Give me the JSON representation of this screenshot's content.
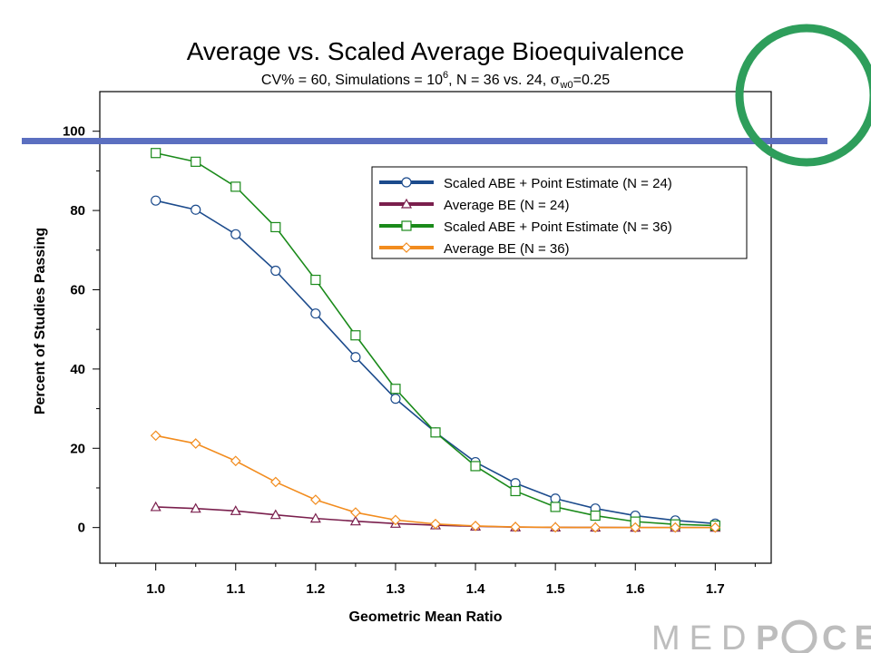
{
  "slide": {
    "title": "Average vs. Scaled Average Bioequivalence",
    "subtitle_parts": {
      "prefix": "CV% = 60, Simulations = 10",
      "sup": "6",
      "middle": ", N = 36 vs. 24, ",
      "sigma": "σ",
      "sub": "w0",
      "suffix": "=0.25"
    },
    "logo_text": "MEDPACE",
    "colors": {
      "header_bar": "#5b6fc0",
      "ring": "#2e9e5b",
      "logo": "#bdbdbd"
    }
  },
  "chart_data": {
    "type": "line",
    "xlabel": "Geometric Mean Ratio",
    "ylabel": "Percent of Studies Passing",
    "xlim": [
      0.93,
      1.77
    ],
    "ylim": [
      -9,
      110
    ],
    "x_ticks": [
      1.0,
      1.1,
      1.2,
      1.3,
      1.4,
      1.5,
      1.6,
      1.7
    ],
    "x_tick_labels": [
      "1.0",
      "1.1",
      "1.2",
      "1.3",
      "1.4",
      "1.5",
      "1.6",
      "1.7"
    ],
    "y_ticks": [
      0,
      20,
      40,
      60,
      80,
      100
    ],
    "y_tick_labels": [
      "0",
      "20",
      "40",
      "60",
      "80",
      "100"
    ],
    "grid": false,
    "legend_position": "top-right",
    "x": [
      1.0,
      1.05,
      1.1,
      1.15,
      1.2,
      1.25,
      1.3,
      1.35,
      1.4,
      1.45,
      1.5,
      1.55,
      1.6,
      1.65,
      1.7
    ],
    "series": [
      {
        "name": "Scaled ABE + Point Estimate (N = 24)",
        "color": "#1c4b8c",
        "marker": "circle",
        "values": [
          82.5,
          80.2,
          74.0,
          64.8,
          54.0,
          43.0,
          32.5,
          24.0,
          16.5,
          11.2,
          7.3,
          4.8,
          3.0,
          1.8,
          1.0
        ]
      },
      {
        "name": "Average BE (N = 24)",
        "color": "#7a1f4d",
        "marker": "triangle",
        "values": [
          5.2,
          4.8,
          4.2,
          3.2,
          2.3,
          1.6,
          1.0,
          0.6,
          0.3,
          0.1,
          0.05,
          0.02,
          0.01,
          0.0,
          0.0
        ]
      },
      {
        "name": "Scaled ABE + Point Estimate (N = 36)",
        "color": "#1a8a1a",
        "marker": "square",
        "values": [
          94.5,
          92.3,
          86.0,
          75.8,
          62.5,
          48.5,
          35.0,
          24.0,
          15.5,
          9.2,
          5.2,
          3.0,
          1.5,
          0.8,
          0.5
        ]
      },
      {
        "name": "Average BE (N = 36)",
        "color": "#f28c1e",
        "marker": "diamond",
        "values": [
          23.2,
          21.2,
          16.8,
          11.5,
          7.0,
          3.8,
          1.9,
          0.9,
          0.4,
          0.15,
          0.05,
          0.02,
          0.0,
          0.0,
          0.0
        ]
      }
    ]
  }
}
